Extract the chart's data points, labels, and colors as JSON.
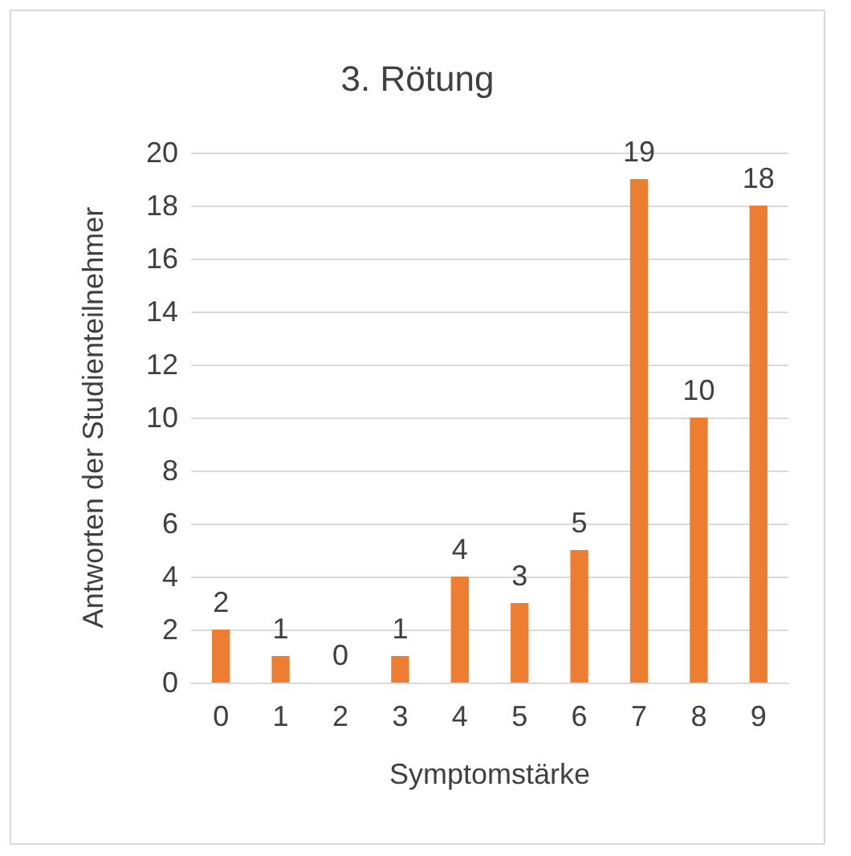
{
  "chart_data": {
    "type": "bar",
    "title": "3. Rötung",
    "xlabel": "Symptomstärke",
    "ylabel": "Antworten der Studienteilnehmer",
    "categories": [
      "0",
      "1",
      "2",
      "3",
      "4",
      "5",
      "6",
      "7",
      "8",
      "9"
    ],
    "values": [
      2,
      1,
      0,
      1,
      4,
      3,
      5,
      19,
      10,
      18
    ],
    "color": "#ed7d31",
    "ylim": [
      0,
      20
    ],
    "yticks": [
      0,
      2,
      4,
      6,
      8,
      10,
      12,
      14,
      16,
      18,
      20
    ],
    "grid": "y",
    "data_labels": true
  }
}
